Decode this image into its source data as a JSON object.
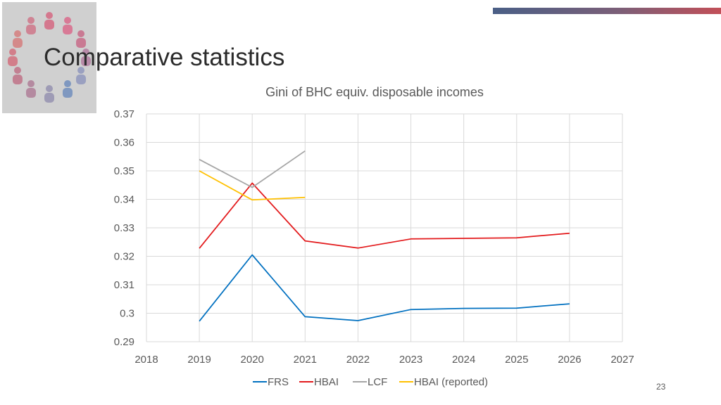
{
  "slide": {
    "title": "Comparative statistics",
    "page_number": "23"
  },
  "colors": {
    "accent_start": "#4a5f86",
    "accent_end": "#c24f58"
  },
  "chart_data": {
    "type": "line",
    "title": "Gini of BHC equiv. disposable incomes",
    "xlabel": "",
    "ylabel": "",
    "xlim": [
      2018,
      2027
    ],
    "ylim": [
      0.29,
      0.37
    ],
    "xticks": [
      "2018",
      "2019",
      "2020",
      "2021",
      "2022",
      "2023",
      "2024",
      "2025",
      "2026",
      "2027"
    ],
    "yticks": [
      "0.29",
      "0.3",
      "0.31",
      "0.32",
      "0.33",
      "0.34",
      "0.35",
      "0.36",
      "0.37"
    ],
    "grid": true,
    "legend_position": "bottom",
    "series": [
      {
        "name": "FRS",
        "color": "#0070c0",
        "x": [
          2019,
          2020,
          2021,
          2022,
          2023,
          2024,
          2025,
          2026
        ],
        "y": [
          0.2972,
          0.3205,
          0.2988,
          0.2974,
          0.3013,
          0.3017,
          0.3018,
          0.3033
        ]
      },
      {
        "name": "HBAI",
        "color": "#e31a1c",
        "x": [
          2019,
          2020,
          2021,
          2022,
          2023,
          2024,
          2025,
          2026
        ],
        "y": [
          0.3228,
          0.3457,
          0.3254,
          0.3229,
          0.3261,
          0.3263,
          0.3265,
          0.3281
        ]
      },
      {
        "name": "LCF",
        "color": "#a5a5a5",
        "x": [
          2019,
          2020,
          2021
        ],
        "y": [
          0.354,
          0.3442,
          0.357
        ]
      },
      {
        "name": "HBAI (reported)",
        "color": "#ffc000",
        "x": [
          2019,
          2020,
          2021
        ],
        "y": [
          0.35,
          0.3398,
          0.3407
        ]
      }
    ]
  }
}
